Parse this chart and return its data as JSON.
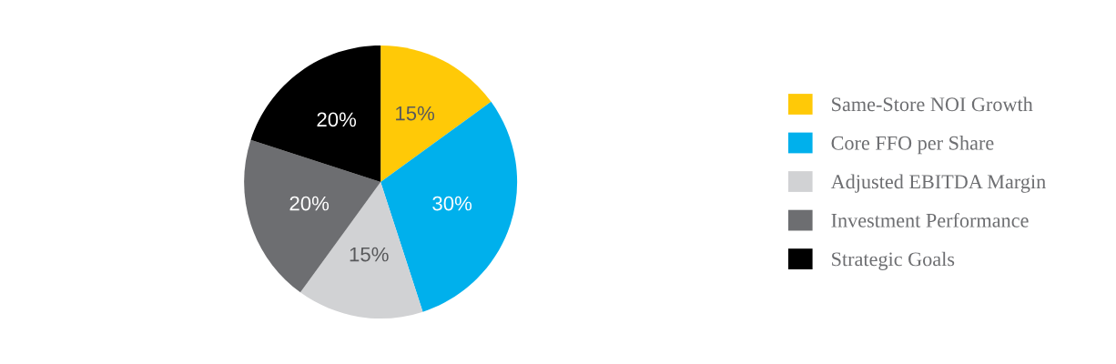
{
  "chart_data": {
    "type": "pie",
    "categories": [
      "Same-Store NOI Growth",
      "Core FFO per Share",
      "Adjusted EBITDA Margin",
      "Investment Performance",
      "Strategic Goals"
    ],
    "values": [
      15,
      30,
      15,
      20,
      20
    ],
    "colors": [
      "#ffc907",
      "#00b0ec",
      "#d1d2d4",
      "#6d6e71",
      "#000000"
    ],
    "value_labels": [
      "15%",
      "30%",
      "15%",
      "20%",
      "20%"
    ],
    "legend": "right"
  }
}
